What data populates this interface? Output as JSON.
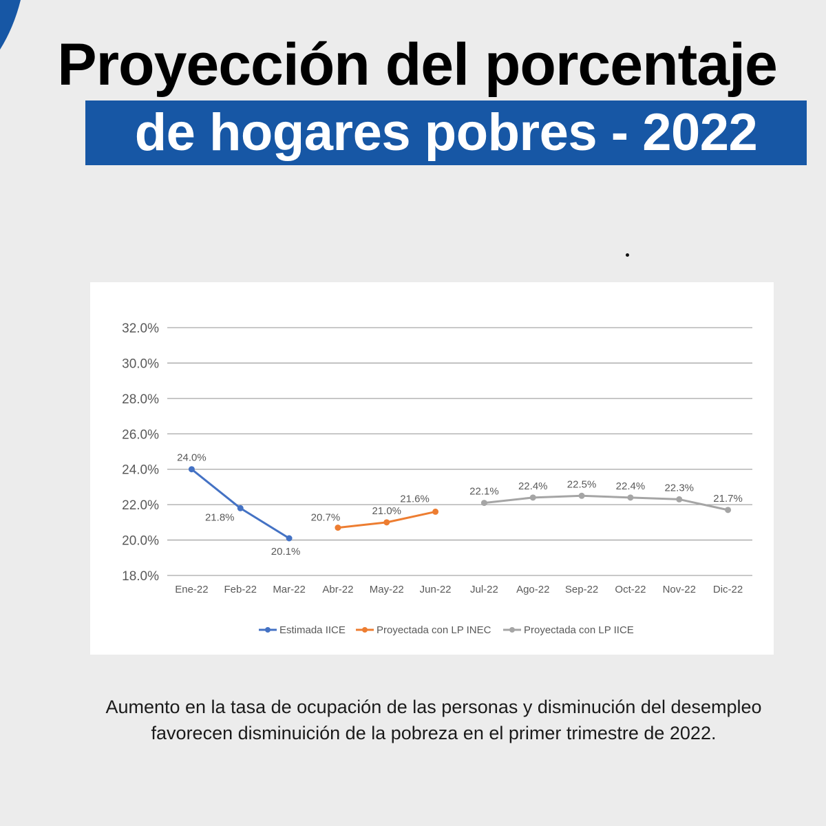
{
  "header": {
    "title_line1": "Proyección del porcentaje",
    "title_line2": "de hogares pobres - 2022"
  },
  "colors": {
    "accent_blue": "#1757a5",
    "series_blue": "#4472c4",
    "series_orange": "#ed7d31",
    "series_gray": "#a5a5a5",
    "gridline": "#a6a6a6"
  },
  "chart_data": {
    "type": "line",
    "title": "",
    "xlabel": "",
    "ylabel": "",
    "categories": [
      "Ene-22",
      "Feb-22",
      "Mar-22",
      "Abr-22",
      "May-22",
      "Jun-22",
      "Jul-22",
      "Ago-22",
      "Sep-22",
      "Oct-22",
      "Nov-22",
      "Dic-22"
    ],
    "ylim": [
      18.0,
      32.0
    ],
    "yticks": [
      "18.0%",
      "20.0%",
      "22.0%",
      "24.0%",
      "26.0%",
      "28.0%",
      "30.0%",
      "32.0%"
    ],
    "grid": true,
    "legend_position": "bottom",
    "series": [
      {
        "name": "Estimada IICE",
        "color": "#4472c4",
        "points": [
          {
            "x": "Ene-22",
            "y": 24.0,
            "label": "24.0%"
          },
          {
            "x": "Feb-22",
            "y": 21.8,
            "label": "21.8%"
          },
          {
            "x": "Mar-22",
            "y": 20.1,
            "label": "20.1%"
          }
        ]
      },
      {
        "name": "Proyectada con LP INEC",
        "color": "#ed7d31",
        "points": [
          {
            "x": "Abr-22",
            "y": 20.7,
            "label": "20.7%"
          },
          {
            "x": "May-22",
            "y": 21.0,
            "label": "21.0%"
          },
          {
            "x": "Jun-22",
            "y": 21.6,
            "label": "21.6%"
          }
        ]
      },
      {
        "name": "Proyectada con LP IICE",
        "color": "#a5a5a5",
        "points": [
          {
            "x": "Jul-22",
            "y": 22.1,
            "label": "22.1%"
          },
          {
            "x": "Ago-22",
            "y": 22.4,
            "label": "22.4%"
          },
          {
            "x": "Sep-22",
            "y": 22.5,
            "label": "22.5%"
          },
          {
            "x": "Oct-22",
            "y": 22.4,
            "label": "22.4%"
          },
          {
            "x": "Nov-22",
            "y": 22.3,
            "label": "22.3%"
          },
          {
            "x": "Dic-22",
            "y": 21.7,
            "label": "21.7%"
          }
        ]
      }
    ]
  },
  "caption": {
    "line1": "Aumento en la tasa de ocupación de las personas y disminución del desempleo",
    "line2": "favorecen disminuición de la pobreza en el primer trimestre de 2022."
  }
}
